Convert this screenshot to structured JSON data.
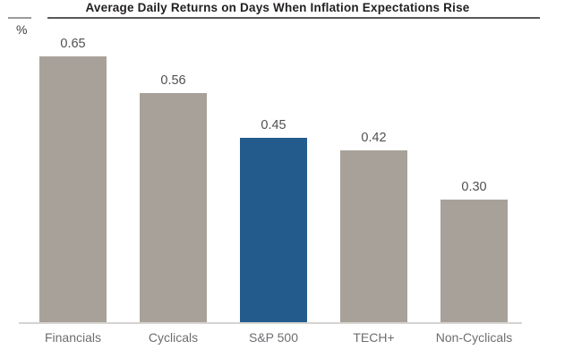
{
  "chart_data": {
    "type": "bar",
    "title": "Average Daily Returns on Days When Inflation Expectations Rise",
    "unit_label": "%",
    "categories": [
      "Financials",
      "Cyclicals",
      "S&P 500",
      "TECH+",
      "Non-Cyclicals"
    ],
    "values": [
      0.65,
      0.56,
      0.45,
      0.42,
      0.3
    ],
    "value_labels": [
      "0.65",
      "0.56",
      "0.45",
      "0.42",
      "0.30"
    ],
    "highlight_category": "S&P 500",
    "highlight_index": 2,
    "ylim": [
      0,
      0.72
    ],
    "grid": false,
    "legend": false,
    "colors": {
      "bar_default": "#a8a19a",
      "bar_highlight": "#235c8c",
      "title_text": "#231f20",
      "header_rule": "#58585b",
      "header_rule_short": "#9b9b9b",
      "unit_text": "#3f3f41",
      "value_label": "#4f5052",
      "category_label": "#6d6e71",
      "axis_line": "#d6d4d1"
    }
  }
}
